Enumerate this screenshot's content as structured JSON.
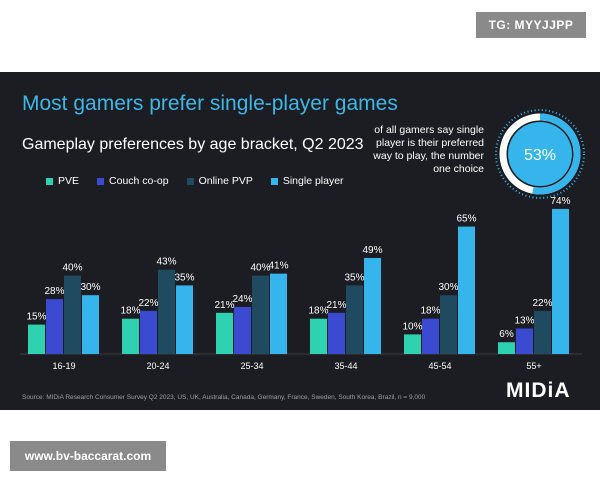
{
  "overlay": {
    "top_tag": "TG: MYYJJPP",
    "bottom_url": "www.bv-baccarat.com"
  },
  "chart_data": {
    "type": "bar",
    "title": "Most gamers prefer single-player games",
    "subtitle": "Gameplay preferences by age bracket, Q2 2023",
    "categories": [
      "16-19",
      "20-24",
      "25-34",
      "35-44",
      "45-54",
      "55+"
    ],
    "series": [
      {
        "name": "PVE",
        "color": "#2ed1b0",
        "values": [
          15,
          18,
          21,
          18,
          10,
          6
        ]
      },
      {
        "name": "Couch co-op",
        "color": "#3b4bd1",
        "values": [
          28,
          22,
          24,
          21,
          18,
          13
        ]
      },
      {
        "name": "Online PVP",
        "color": "#1f4a5f",
        "values": [
          40,
          43,
          40,
          35,
          30,
          22
        ]
      },
      {
        "name": "Single player",
        "color": "#36b5ec",
        "values": [
          30,
          35,
          41,
          49,
          65,
          74
        ]
      }
    ],
    "value_suffix": "%",
    "ylim": [
      0,
      80
    ],
    "grid": false,
    "legend_position": "top-left",
    "callout": {
      "text": "of all gamers say single player is their preferred way to play, the number one choice",
      "value": 53,
      "label": "53%"
    },
    "source": "Source: MIDiA Research Consumer Survey Q2 2023, US, UK, Australia, Canada, Germany, France, Sweden, South Korea, Brazil, n = 9,000",
    "logo": "MIDiA"
  }
}
